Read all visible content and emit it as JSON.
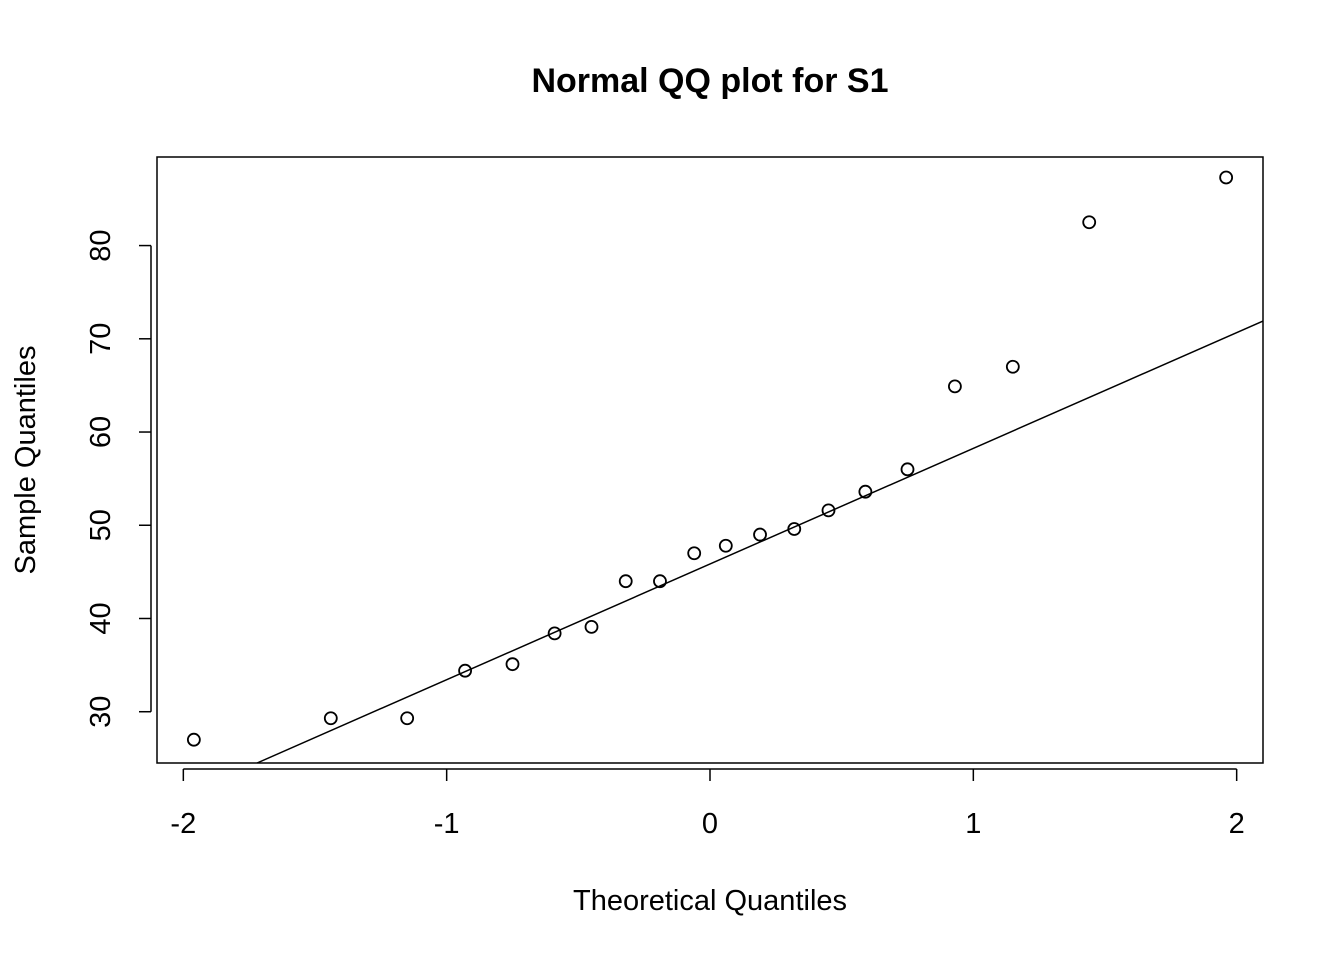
{
  "chart_data": {
    "type": "scatter",
    "title": "Normal QQ plot for S1",
    "xlabel": "Theoretical Quantiles",
    "ylabel": "Sample Quantiles",
    "xlim": [
      -2.1,
      2.1
    ],
    "ylim": [
      24.5,
      89.5
    ],
    "x_ticks": [
      -2,
      -1,
      0,
      1,
      2
    ],
    "x_tick_labels": [
      "-2",
      "-1",
      "0",
      "1",
      "2"
    ],
    "y_ticks": [
      30,
      40,
      50,
      60,
      70,
      80
    ],
    "y_tick_labels": [
      "30",
      "40",
      "50",
      "60",
      "70",
      "80"
    ],
    "grid": false,
    "legend": "none",
    "colors": {
      "points": "#000000",
      "line": "#000000",
      "frame": "#000000"
    },
    "series": [
      {
        "kind": "points",
        "marker": "open-circle",
        "points": [
          {
            "x": -1.96,
            "y": 27.0
          },
          {
            "x": -1.44,
            "y": 29.3
          },
          {
            "x": -1.15,
            "y": 29.3
          },
          {
            "x": -0.93,
            "y": 34.4
          },
          {
            "x": -0.75,
            "y": 35.1
          },
          {
            "x": -0.59,
            "y": 38.4
          },
          {
            "x": -0.45,
            "y": 39.1
          },
          {
            "x": -0.32,
            "y": 44.0
          },
          {
            "x": -0.19,
            "y": 44.0
          },
          {
            "x": -0.06,
            "y": 47.0
          },
          {
            "x": 0.06,
            "y": 47.8
          },
          {
            "x": 0.19,
            "y": 49.0
          },
          {
            "x": 0.32,
            "y": 49.6
          },
          {
            "x": 0.45,
            "y": 51.6
          },
          {
            "x": 0.59,
            "y": 53.6
          },
          {
            "x": 0.75,
            "y": 56.0
          },
          {
            "x": 0.93,
            "y": 64.9
          },
          {
            "x": 1.15,
            "y": 67.0
          },
          {
            "x": 1.44,
            "y": 82.5
          },
          {
            "x": 1.96,
            "y": 87.3
          }
        ]
      },
      {
        "kind": "reference-line",
        "points": [
          {
            "x": -1.72,
            "y": 24.5
          },
          {
            "x": 2.1,
            "y": 71.9
          }
        ]
      }
    ]
  }
}
